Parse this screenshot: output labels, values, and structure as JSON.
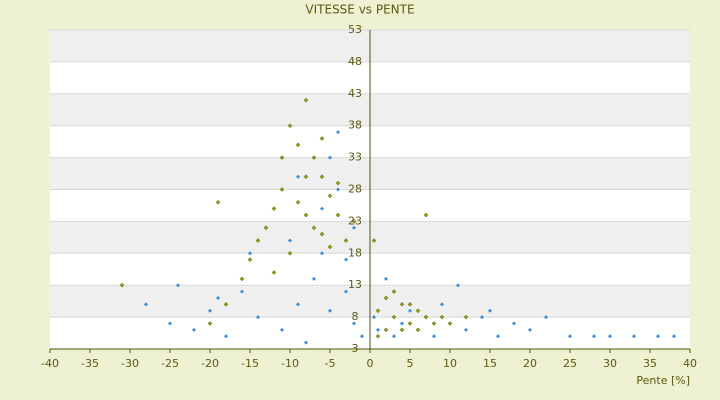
{
  "chart_data": {
    "type": "scatter",
    "title": "VITESSE vs PENTE",
    "x_label": "Pente [%]",
    "xlim": [
      -40,
      40
    ],
    "xticks": [
      -40,
      -35,
      -30,
      -25,
      -20,
      -15,
      -10,
      -5,
      0,
      5,
      10,
      15,
      20,
      25,
      30,
      35,
      40
    ],
    "ylim": [
      3,
      53
    ],
    "yticks": [
      3,
      8,
      13,
      18,
      23,
      28,
      33,
      38,
      43,
      48,
      53
    ],
    "grid": true,
    "series": [
      {
        "color": "#3a8ad8",
        "x": [
          -28,
          -25,
          -24,
          -22,
          -20,
          -19,
          -18,
          -16,
          -15,
          -14,
          -13,
          -12,
          -11,
          -10,
          -9,
          -9,
          -8,
          -7,
          -6,
          -6,
          -5,
          -5,
          -4,
          -4,
          -3,
          -3,
          -2,
          -2,
          -1,
          0.5,
          1,
          2,
          3,
          4,
          5,
          6,
          7,
          8,
          9,
          10,
          11,
          12,
          14,
          15,
          16,
          18,
          20,
          22,
          25,
          28,
          30,
          33,
          36,
          38
        ],
        "values": [
          10,
          7,
          13,
          6,
          9,
          11,
          5,
          12,
          18,
          8,
          22,
          15,
          6,
          20,
          10,
          30,
          4,
          14,
          25,
          18,
          9,
          33,
          37,
          28,
          17,
          12,
          7,
          22,
          5,
          8,
          6,
          14,
          5,
          7,
          9,
          6,
          8,
          5,
          10,
          7,
          13,
          6,
          8,
          9,
          5,
          7,
          6,
          8,
          5,
          5,
          5,
          5,
          5,
          5
        ]
      },
      {
        "color": "#a0a020",
        "x": [
          -10,
          -9,
          -8,
          -7,
          -6,
          -5,
          -11,
          -12,
          -13,
          -14,
          -9,
          -8,
          -7,
          -6,
          -5,
          -4,
          -3,
          -10,
          -12,
          -16,
          -18,
          -20,
          -15,
          -8,
          -6,
          -4,
          -2,
          -19,
          -31,
          1,
          2,
          3,
          4,
          5,
          6,
          7,
          8,
          2,
          3,
          4,
          5,
          6,
          9,
          10,
          1,
          7,
          0.5,
          12,
          -11
        ],
        "values": [
          38,
          35,
          42,
          33,
          30,
          27,
          28,
          25,
          22,
          20,
          26,
          24,
          22,
          21,
          19,
          24,
          20,
          18,
          15,
          14,
          10,
          7,
          17,
          30,
          36,
          29,
          23,
          26,
          13,
          9,
          11,
          8,
          10,
          7,
          9,
          8,
          7,
          6,
          12,
          6,
          10,
          6,
          8,
          7,
          5,
          24,
          20,
          8,
          33
        ]
      }
    ]
  }
}
